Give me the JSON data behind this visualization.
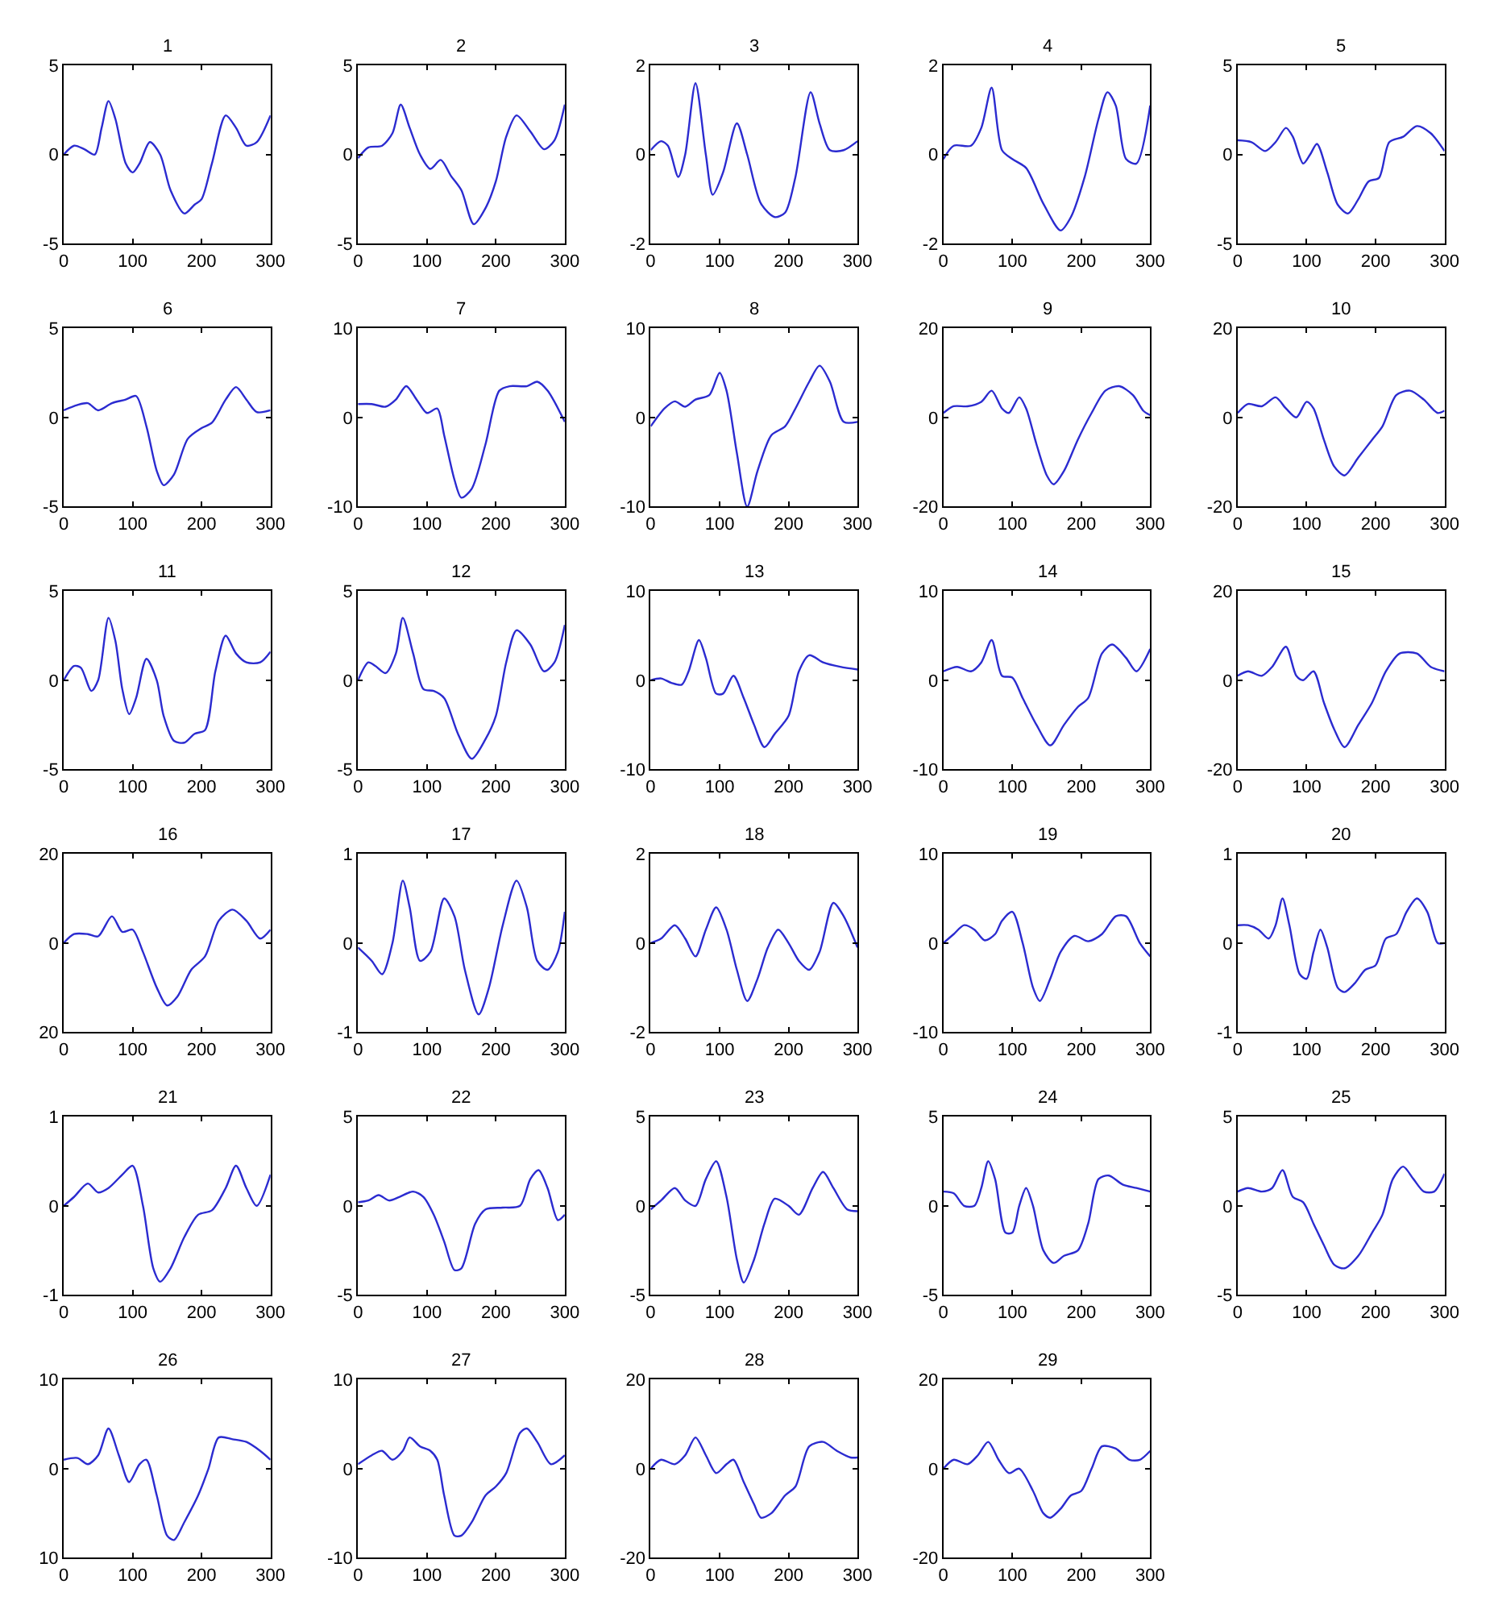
{
  "chart_data": [
    {
      "type": "line",
      "title": "1",
      "color": "#2b2bd0",
      "xlim": [
        0,
        300
      ],
      "ylim": [
        -5,
        5
      ],
      "xticks": [
        0,
        100,
        200,
        300
      ],
      "yticks": [
        -5,
        0,
        5
      ],
      "x": [
        0,
        15,
        30,
        45,
        55,
        65,
        75,
        90,
        100,
        110,
        125,
        140,
        155,
        175,
        190,
        200,
        215,
        235,
        250,
        265,
        280,
        300
      ],
      "values": [
        0,
        0.5,
        0.3,
        0,
        1.5,
        3,
        2,
        -0.5,
        -1,
        -0.5,
        0.7,
        0,
        -2,
        -3.3,
        -2.8,
        -2.5,
        -0.5,
        2.2,
        1.5,
        0.5,
        0.7,
        2.2
      ]
    },
    {
      "type": "line",
      "title": "2",
      "color": "#2b2bd0",
      "xlim": [
        0,
        300
      ],
      "ylim": [
        -5,
        5
      ],
      "xticks": [
        0,
        100,
        200,
        300
      ],
      "yticks": [
        -5,
        0,
        5
      ],
      "x": [
        0,
        15,
        35,
        50,
        62,
        75,
        90,
        105,
        120,
        135,
        150,
        168,
        185,
        200,
        215,
        230,
        250,
        270,
        285,
        300
      ],
      "values": [
        -0.2,
        0.4,
        0.5,
        1.2,
        2.8,
        1.5,
        0,
        -0.8,
        -0.3,
        -1.2,
        -2,
        -3.9,
        -3,
        -1.5,
        1,
        2.2,
        1.3,
        0.3,
        0.8,
        2.8
      ]
    },
    {
      "type": "line",
      "title": "3",
      "color": "#2b2bd0",
      "xlim": [
        0,
        300
      ],
      "ylim": [
        -2,
        2
      ],
      "xticks": [
        0,
        100,
        200,
        300
      ],
      "yticks": [
        -2,
        0,
        2
      ],
      "x": [
        0,
        15,
        25,
        40,
        50,
        65,
        80,
        90,
        105,
        125,
        140,
        160,
        180,
        195,
        210,
        232,
        245,
        260,
        280,
        300
      ],
      "values": [
        0.1,
        0.3,
        0.2,
        -0.5,
        0,
        1.6,
        0,
        -0.9,
        -0.4,
        0.7,
        0,
        -1.1,
        -1.4,
        -1.3,
        -0.5,
        1.4,
        0.7,
        0.1,
        0.1,
        0.3
      ]
    },
    {
      "type": "line",
      "title": "4",
      "color": "#2b2bd0",
      "xlim": [
        0,
        300
      ],
      "ylim": [
        -2,
        2
      ],
      "xticks": [
        0,
        100,
        200,
        300
      ],
      "yticks": [
        -2,
        0,
        2
      ],
      "x": [
        0,
        15,
        40,
        55,
        70,
        85,
        100,
        120,
        145,
        170,
        185,
        205,
        225,
        238,
        250,
        265,
        280,
        300
      ],
      "values": [
        -0.1,
        0.2,
        0.2,
        0.6,
        1.5,
        0.1,
        -0.1,
        -0.3,
        -1.1,
        -1.7,
        -1.4,
        -0.5,
        0.8,
        1.4,
        1.1,
        -0.1,
        -0.2,
        1.1
      ]
    },
    {
      "type": "line",
      "title": "5",
      "color": "#2b2bd0",
      "xlim": [
        0,
        300
      ],
      "ylim": [
        -5,
        5
      ],
      "xticks": [
        0,
        100,
        200,
        300
      ],
      "yticks": [
        -5,
        0,
        5
      ],
      "x": [
        0,
        20,
        40,
        55,
        70,
        80,
        95,
        105,
        115,
        130,
        145,
        160,
        175,
        190,
        205,
        220,
        240,
        260,
        280,
        300
      ],
      "values": [
        0.8,
        0.7,
        0.2,
        0.7,
        1.5,
        1,
        -0.5,
        0,
        0.6,
        -1,
        -2.8,
        -3.3,
        -2.5,
        -1.5,
        -1.3,
        0.7,
        1,
        1.6,
        1.2,
        0.2
      ]
    },
    {
      "type": "line",
      "title": "6",
      "color": "#2b2bd0",
      "xlim": [
        0,
        300
      ],
      "ylim": [
        -5,
        5
      ],
      "xticks": [
        0,
        100,
        200,
        300
      ],
      "yticks": [
        -5,
        0,
        5
      ],
      "x": [
        0,
        20,
        35,
        50,
        70,
        90,
        105,
        120,
        135,
        145,
        160,
        180,
        200,
        215,
        235,
        250,
        265,
        280,
        300
      ],
      "values": [
        0.4,
        0.7,
        0.8,
        0.4,
        0.8,
        1,
        1.2,
        -0.5,
        -3,
        -3.8,
        -3.2,
        -1.2,
        -0.6,
        -0.3,
        1,
        1.7,
        1,
        0.3,
        0.4
      ]
    },
    {
      "type": "line",
      "title": "7",
      "color": "#2b2bd0",
      "xlim": [
        0,
        300
      ],
      "ylim": [
        -10,
        10
      ],
      "xticks": [
        0,
        100,
        200,
        300
      ],
      "yticks": [
        -10,
        0,
        10
      ],
      "x": [
        0,
        20,
        40,
        55,
        70,
        85,
        100,
        115,
        125,
        140,
        150,
        165,
        185,
        205,
        220,
        245,
        260,
        275,
        300
      ],
      "values": [
        1.5,
        1.5,
        1.2,
        2,
        3.5,
        2,
        0.5,
        1,
        -2,
        -7,
        -9,
        -8,
        -3,
        3,
        3.5,
        3.5,
        4,
        3,
        -0.5
      ]
    },
    {
      "type": "line",
      "title": "8",
      "color": "#2b2bd0",
      "xlim": [
        0,
        300
      ],
      "ylim": [
        -10,
        10
      ],
      "xticks": [
        0,
        100,
        200,
        300
      ],
      "yticks": [
        -10,
        0,
        10
      ],
      "x": [
        0,
        20,
        35,
        50,
        65,
        85,
        100,
        110,
        125,
        140,
        155,
        175,
        195,
        210,
        230,
        245,
        260,
        280,
        300
      ],
      "values": [
        -1,
        1,
        1.8,
        1.2,
        2,
        2.5,
        5,
        3,
        -4,
        -10,
        -6,
        -2,
        -1,
        1,
        4,
        5.8,
        4,
        -0.5,
        -0.5
      ]
    },
    {
      "type": "line",
      "title": "9",
      "color": "#2b2bd0",
      "xlim": [
        0,
        300
      ],
      "ylim": [
        -20,
        20
      ],
      "xticks": [
        0,
        100,
        200,
        300
      ],
      "yticks": [
        -20,
        0,
        20
      ],
      "x": [
        0,
        15,
        35,
        55,
        70,
        85,
        95,
        110,
        120,
        135,
        150,
        160,
        175,
        195,
        215,
        235,
        255,
        275,
        290,
        300
      ],
      "values": [
        1,
        2.5,
        2.5,
        3.5,
        6,
        2,
        1,
        4.5,
        2,
        -6,
        -13,
        -15,
        -12,
        -5,
        1,
        6,
        7,
        5,
        1.5,
        0.5
      ]
    },
    {
      "type": "line",
      "title": "10",
      "color": "#2b2bd0",
      "xlim": [
        0,
        300
      ],
      "ylim": [
        -20,
        20
      ],
      "xticks": [
        0,
        100,
        200,
        300
      ],
      "yticks": [
        -20,
        0,
        20
      ],
      "x": [
        0,
        15,
        35,
        55,
        70,
        85,
        100,
        110,
        125,
        140,
        155,
        175,
        195,
        210,
        230,
        250,
        270,
        290,
        300
      ],
      "values": [
        1,
        3,
        2.5,
        4.5,
        2,
        0,
        3.5,
        2,
        -5,
        -11,
        -13,
        -9,
        -5,
        -2,
        5,
        6,
        4,
        1,
        1.5
      ]
    },
    {
      "type": "line",
      "title": "11",
      "color": "#2b2bd0",
      "xlim": [
        0,
        300
      ],
      "ylim": [
        -5,
        5
      ],
      "xticks": [
        0,
        100,
        200,
        300
      ],
      "yticks": [
        -5,
        0,
        5
      ],
      "x": [
        0,
        15,
        25,
        40,
        50,
        65,
        75,
        85,
        95,
        105,
        120,
        135,
        145,
        160,
        175,
        190,
        205,
        220,
        235,
        250,
        265,
        285,
        300
      ],
      "values": [
        0,
        0.8,
        0.7,
        -0.6,
        0,
        3.5,
        2.2,
        -0.5,
        -1.9,
        -1,
        1.2,
        0,
        -2,
        -3.4,
        -3.5,
        -3,
        -2.8,
        0.5,
        2.5,
        1.5,
        1,
        1,
        1.6
      ]
    },
    {
      "type": "line",
      "title": "12",
      "color": "#2b2bd0",
      "xlim": [
        0,
        300
      ],
      "ylim": [
        -5,
        5
      ],
      "xticks": [
        0,
        100,
        200,
        300
      ],
      "yticks": [
        -5,
        0,
        5
      ],
      "x": [
        0,
        15,
        25,
        40,
        55,
        65,
        80,
        95,
        110,
        125,
        145,
        165,
        185,
        200,
        215,
        230,
        250,
        270,
        285,
        300
      ],
      "values": [
        0,
        1,
        0.8,
        0.4,
        1.5,
        3.5,
        1.5,
        -0.5,
        -0.6,
        -1,
        -3,
        -4.4,
        -3.3,
        -2,
        1,
        2.8,
        2,
        0.5,
        1,
        3.1
      ]
    },
    {
      "type": "line",
      "title": "13",
      "color": "#2b2bd0",
      "xlim": [
        0,
        300
      ],
      "ylim": [
        -10,
        10
      ],
      "xticks": [
        0,
        100,
        200,
        300
      ],
      "yticks": [
        -10,
        0,
        10
      ],
      "x": [
        0,
        15,
        30,
        45,
        55,
        70,
        80,
        95,
        105,
        120,
        135,
        150,
        165,
        180,
        200,
        215,
        230,
        250,
        275,
        300
      ],
      "values": [
        0,
        0.2,
        -0.3,
        -0.5,
        1,
        4.5,
        2.5,
        -1.5,
        -1.5,
        0.5,
        -2,
        -5,
        -7.5,
        -6,
        -4,
        1,
        2.8,
        2,
        1.5,
        1.2
      ]
    },
    {
      "type": "line",
      "title": "14",
      "color": "#2b2bd0",
      "xlim": [
        0,
        300
      ],
      "ylim": [
        -10,
        10
      ],
      "xticks": [
        0,
        100,
        200,
        300
      ],
      "yticks": [
        -10,
        0,
        10
      ],
      "x": [
        0,
        20,
        40,
        55,
        70,
        85,
        100,
        115,
        135,
        155,
        175,
        195,
        210,
        230,
        245,
        265,
        280,
        300
      ],
      "values": [
        1,
        1.5,
        1,
        2,
        4.5,
        0.5,
        0.3,
        -2,
        -5,
        -7.3,
        -5,
        -3,
        -2,
        3,
        4,
        2.5,
        1,
        3.5
      ]
    },
    {
      "type": "line",
      "title": "15",
      "color": "#2b2bd0",
      "xlim": [
        0,
        300
      ],
      "ylim": [
        -20,
        20
      ],
      "xticks": [
        0,
        100,
        200,
        300
      ],
      "yticks": [
        -20,
        0,
        20
      ],
      "x": [
        0,
        15,
        35,
        50,
        70,
        85,
        95,
        110,
        125,
        140,
        155,
        175,
        195,
        215,
        235,
        260,
        280,
        300
      ],
      "values": [
        1,
        2,
        1,
        3,
        7.5,
        1,
        0,
        2,
        -5,
        -11,
        -15,
        -10,
        -5,
        2,
        6,
        6,
        3,
        2
      ]
    },
    {
      "type": "line",
      "title": "16",
      "color": "#2b2bd0",
      "xlim": [
        0,
        300
      ],
      "ylim": [
        -20,
        20
      ],
      "xticks": [
        0,
        100,
        200,
        300
      ],
      "yticks": [
        {
          "value": -20,
          "label": "20"
        },
        0,
        {
          "value": 20,
          "label": "20"
        }
      ],
      "x": [
        0,
        15,
        35,
        50,
        70,
        85,
        100,
        115,
        135,
        150,
        165,
        185,
        205,
        225,
        245,
        265,
        285,
        300
      ],
      "values": [
        0,
        2,
        2,
        1.5,
        6,
        2.5,
        3,
        -2,
        -10,
        -14,
        -12,
        -6,
        -3,
        5,
        7.5,
        5,
        1,
        3
      ]
    },
    {
      "type": "line",
      "title": "17",
      "color": "#2b2bd0",
      "xlim": [
        0,
        300
      ],
      "ylim": [
        -1,
        1
      ],
      "xticks": [
        0,
        100,
        200,
        300
      ],
      "yticks": [
        -1,
        0,
        1
      ],
      "x": [
        0,
        20,
        35,
        50,
        65,
        75,
        90,
        105,
        125,
        140,
        155,
        175,
        190,
        210,
        230,
        245,
        260,
        275,
        290,
        300
      ],
      "values": [
        -0.05,
        -0.2,
        -0.35,
        0,
        0.7,
        0.4,
        -0.2,
        -0.1,
        0.5,
        0.3,
        -0.3,
        -0.8,
        -0.5,
        0.2,
        0.7,
        0.4,
        -0.2,
        -0.3,
        -0.1,
        0.35
      ]
    },
    {
      "type": "line",
      "title": "18",
      "color": "#2b2bd0",
      "xlim": [
        0,
        300
      ],
      "ylim": [
        -2,
        2
      ],
      "xticks": [
        0,
        100,
        200,
        300
      ],
      "yticks": [
        -2,
        0,
        2
      ],
      "x": [
        0,
        15,
        35,
        50,
        65,
        80,
        95,
        110,
        125,
        140,
        155,
        170,
        185,
        200,
        215,
        230,
        245,
        265,
        280,
        300
      ],
      "values": [
        0,
        0.1,
        0.4,
        0.1,
        -0.3,
        0.3,
        0.8,
        0.3,
        -0.6,
        -1.3,
        -0.8,
        -0.1,
        0.3,
        0,
        -0.4,
        -0.6,
        -0.2,
        0.9,
        0.6,
        -0.1
      ]
    },
    {
      "type": "line",
      "title": "19",
      "color": "#2b2bd0",
      "xlim": [
        0,
        300
      ],
      "ylim": [
        -10,
        10
      ],
      "xticks": [
        0,
        100,
        200,
        300
      ],
      "yticks": [
        -10,
        0,
        10
      ],
      "x": [
        0,
        15,
        30,
        45,
        60,
        75,
        85,
        100,
        115,
        130,
        140,
        155,
        170,
        190,
        210,
        230,
        250,
        265,
        285,
        300
      ],
      "values": [
        0,
        1,
        2,
        1.5,
        0.3,
        1,
        2.5,
        3.5,
        0,
        -5,
        -6.5,
        -4,
        -1,
        0.8,
        0.2,
        1,
        3,
        3,
        0,
        -1.5
      ]
    },
    {
      "type": "line",
      "title": "20",
      "color": "#2b2bd0",
      "xlim": [
        0,
        300
      ],
      "ylim": [
        -1,
        1
      ],
      "xticks": [
        0,
        100,
        200,
        300
      ],
      "yticks": [
        -1,
        0,
        1
      ],
      "x": [
        0,
        15,
        30,
        45,
        55,
        65,
        75,
        90,
        100,
        110,
        120,
        130,
        145,
        155,
        170,
        185,
        200,
        215,
        230,
        245,
        260,
        275,
        290,
        300
      ],
      "values": [
        0.2,
        0.2,
        0.15,
        0.05,
        0.2,
        0.5,
        0.2,
        -0.35,
        -0.4,
        -0.1,
        0.15,
        -0.05,
        -0.5,
        -0.55,
        -0.45,
        -0.3,
        -0.25,
        0.05,
        0.1,
        0.35,
        0.5,
        0.35,
        0,
        0
      ]
    },
    {
      "type": "line",
      "title": "21",
      "color": "#2b2bd0",
      "xlim": [
        0,
        300
      ],
      "ylim": [
        -1,
        1
      ],
      "xticks": [
        0,
        100,
        200,
        300
      ],
      "yticks": [
        -1,
        0,
        1
      ],
      "x": [
        0,
        15,
        35,
        50,
        65,
        85,
        100,
        115,
        130,
        140,
        155,
        175,
        195,
        215,
        235,
        250,
        265,
        280,
        300
      ],
      "values": [
        0,
        0.1,
        0.25,
        0.15,
        0.2,
        0.35,
        0.45,
        0,
        -0.7,
        -0.85,
        -0.7,
        -0.35,
        -0.1,
        -0.05,
        0.2,
        0.45,
        0.2,
        0,
        0.35
      ]
    },
    {
      "type": "line",
      "title": "22",
      "color": "#2b2bd0",
      "xlim": [
        0,
        300
      ],
      "ylim": [
        -5,
        5
      ],
      "xticks": [
        0,
        100,
        200,
        300
      ],
      "yticks": [
        -5,
        0,
        5
      ],
      "x": [
        0,
        15,
        30,
        45,
        60,
        80,
        95,
        110,
        125,
        140,
        150,
        170,
        185,
        210,
        235,
        250,
        262,
        275,
        290,
        300
      ],
      "values": [
        0.2,
        0.3,
        0.6,
        0.3,
        0.5,
        0.8,
        0.5,
        -0.5,
        -2,
        -3.6,
        -3.5,
        -1,
        -0.2,
        -0.1,
        0,
        1.5,
        2,
        1,
        -0.8,
        -0.5
      ]
    },
    {
      "type": "line",
      "title": "23",
      "color": "#2b2bd0",
      "xlim": [
        0,
        300
      ],
      "ylim": [
        -5,
        5
      ],
      "xticks": [
        0,
        100,
        200,
        300
      ],
      "yticks": [
        -5,
        0,
        5
      ],
      "x": [
        0,
        15,
        35,
        50,
        65,
        80,
        95,
        110,
        125,
        135,
        150,
        165,
        180,
        200,
        215,
        235,
        250,
        265,
        285,
        300
      ],
      "values": [
        -0.2,
        0.3,
        1,
        0.3,
        0,
        1.5,
        2.5,
        0.5,
        -3,
        -4.3,
        -3,
        -1,
        0.4,
        0,
        -0.5,
        1,
        1.9,
        1,
        -0.2,
        -0.3
      ]
    },
    {
      "type": "line",
      "title": "24",
      "color": "#2b2bd0",
      "xlim": [
        0,
        300
      ],
      "ylim": [
        -5,
        5
      ],
      "xticks": [
        0,
        100,
        200,
        300
      ],
      "yticks": [
        -5,
        0,
        5
      ],
      "x": [
        0,
        15,
        30,
        45,
        55,
        65,
        75,
        90,
        100,
        110,
        120,
        130,
        145,
        160,
        175,
        195,
        210,
        225,
        240,
        260,
        280,
        300
      ],
      "values": [
        0.8,
        0.7,
        0,
        0,
        1,
        2.5,
        1.5,
        -1.5,
        -1.5,
        0,
        1,
        0,
        -2.5,
        -3.2,
        -2.8,
        -2.5,
        -1,
        1.5,
        1.7,
        1.2,
        1,
        0.8
      ]
    },
    {
      "type": "line",
      "title": "25",
      "color": "#2b2bd0",
      "xlim": [
        0,
        300
      ],
      "ylim": [
        -5,
        5
      ],
      "xticks": [
        0,
        100,
        200,
        300
      ],
      "yticks": [
        -5,
        0,
        5
      ],
      "x": [
        0,
        15,
        35,
        50,
        65,
        80,
        95,
        110,
        125,
        140,
        155,
        175,
        195,
        210,
        225,
        240,
        255,
        270,
        285,
        300
      ],
      "values": [
        0.8,
        1,
        0.8,
        1,
        2,
        0.5,
        0.2,
        -1,
        -2.2,
        -3.3,
        -3.5,
        -2.8,
        -1.5,
        -0.5,
        1.5,
        2.2,
        1.5,
        0.8,
        0.8,
        1.8
      ]
    },
    {
      "type": "line",
      "title": "26",
      "color": "#2b2bd0",
      "xlim": [
        0,
        300
      ],
      "ylim": [
        -10,
        10
      ],
      "xticks": [
        0,
        100,
        200,
        300
      ],
      "yticks": [
        {
          "value": -10,
          "label": "10"
        },
        0,
        10
      ],
      "x": [
        0,
        20,
        35,
        50,
        65,
        80,
        95,
        110,
        120,
        135,
        150,
        160,
        175,
        195,
        210,
        225,
        245,
        265,
        285,
        300
      ],
      "values": [
        1,
        1.2,
        0.5,
        1.5,
        4.5,
        1.5,
        -1.5,
        0.5,
        1,
        -3,
        -7.5,
        -8,
        -6,
        -3,
        0,
        3.5,
        3.3,
        3,
        2,
        1
      ]
    },
    {
      "type": "line",
      "title": "27",
      "color": "#2b2bd0",
      "xlim": [
        0,
        300
      ],
      "ylim": [
        -10,
        10
      ],
      "xticks": [
        0,
        100,
        200,
        300
      ],
      "yticks": [
        -10,
        0,
        10
      ],
      "x": [
        0,
        20,
        35,
        50,
        65,
        75,
        90,
        105,
        115,
        125,
        140,
        150,
        165,
        185,
        200,
        215,
        235,
        245,
        260,
        280,
        300
      ],
      "values": [
        0.5,
        1.5,
        2,
        1,
        2,
        3.5,
        2.5,
        2,
        1,
        -3,
        -7.5,
        -7.5,
        -6,
        -3,
        -2,
        -0.5,
        4,
        4.5,
        3,
        0.5,
        1.5
      ]
    },
    {
      "type": "line",
      "title": "28",
      "color": "#2b2bd0",
      "xlim": [
        0,
        300
      ],
      "ylim": [
        -20,
        20
      ],
      "xticks": [
        0,
        100,
        200,
        300
      ],
      "yticks": [
        -20,
        0,
        20
      ],
      "x": [
        0,
        15,
        35,
        50,
        65,
        80,
        95,
        110,
        120,
        135,
        150,
        160,
        175,
        195,
        210,
        230,
        250,
        270,
        290,
        300
      ],
      "values": [
        0,
        2,
        1,
        3,
        7,
        3,
        -1,
        1,
        2,
        -3,
        -8,
        -11,
        -10,
        -6,
        -4,
        5,
        6,
        4,
        2.5,
        2.5
      ]
    },
    {
      "type": "line",
      "title": "29",
      "color": "#2b2bd0",
      "xlim": [
        0,
        300
      ],
      "ylim": [
        -20,
        20
      ],
      "xticks": [
        0,
        100,
        200,
        300
      ],
      "yticks": [
        -20,
        0,
        20
      ],
      "x": [
        0,
        15,
        35,
        50,
        65,
        80,
        95,
        110,
        130,
        145,
        155,
        170,
        185,
        200,
        215,
        230,
        250,
        270,
        285,
        300
      ],
      "values": [
        0,
        2,
        1,
        3,
        6,
        2,
        -1,
        0,
        -5,
        -10,
        -11,
        -9,
        -6,
        -5,
        0,
        5,
        4.5,
        2,
        2,
        4
      ]
    }
  ]
}
